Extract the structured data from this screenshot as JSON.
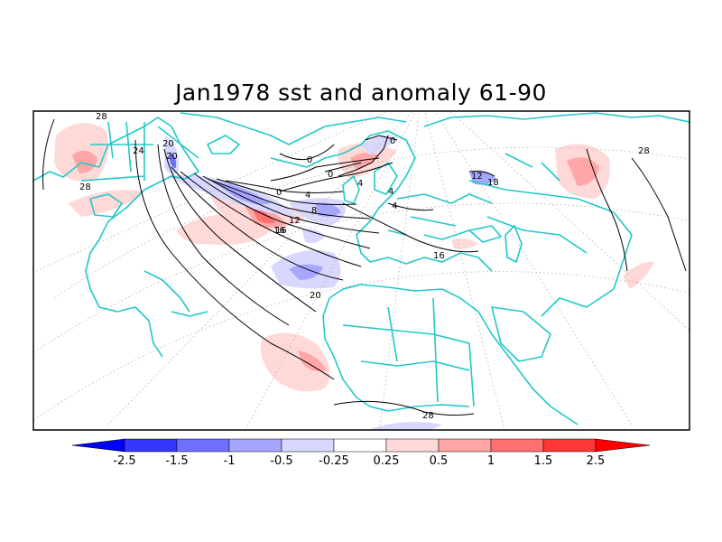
{
  "title": "Jan1978 sst and anomaly 61-90",
  "colorbar": {
    "ticks": [
      "-2.5",
      "-1.5",
      "-1",
      "-0.5",
      "-0.25",
      "0.25",
      "0.5",
      "1",
      "1.5",
      "2.5"
    ],
    "colors": [
      "#0000ff",
      "#3636ff",
      "#7070ff",
      "#a6a6ff",
      "#d8d8ff",
      "#ffffff",
      "#ffd8d8",
      "#ffa6a6",
      "#ff7070",
      "#ff3636",
      "#ff0000"
    ]
  },
  "contour_labels": [
    "28",
    "24",
    "20",
    "28",
    "0",
    "0",
    "4",
    "4",
    "0",
    "20",
    "16",
    "12",
    "8",
    "4",
    "4",
    "16",
    "20",
    "28",
    "28",
    "16",
    "0",
    "18",
    "12"
  ],
  "colors": {
    "coastline": "#22c8c8",
    "graticule": "#b0b0b0",
    "contour": "#000000",
    "frame": "#000000"
  }
}
